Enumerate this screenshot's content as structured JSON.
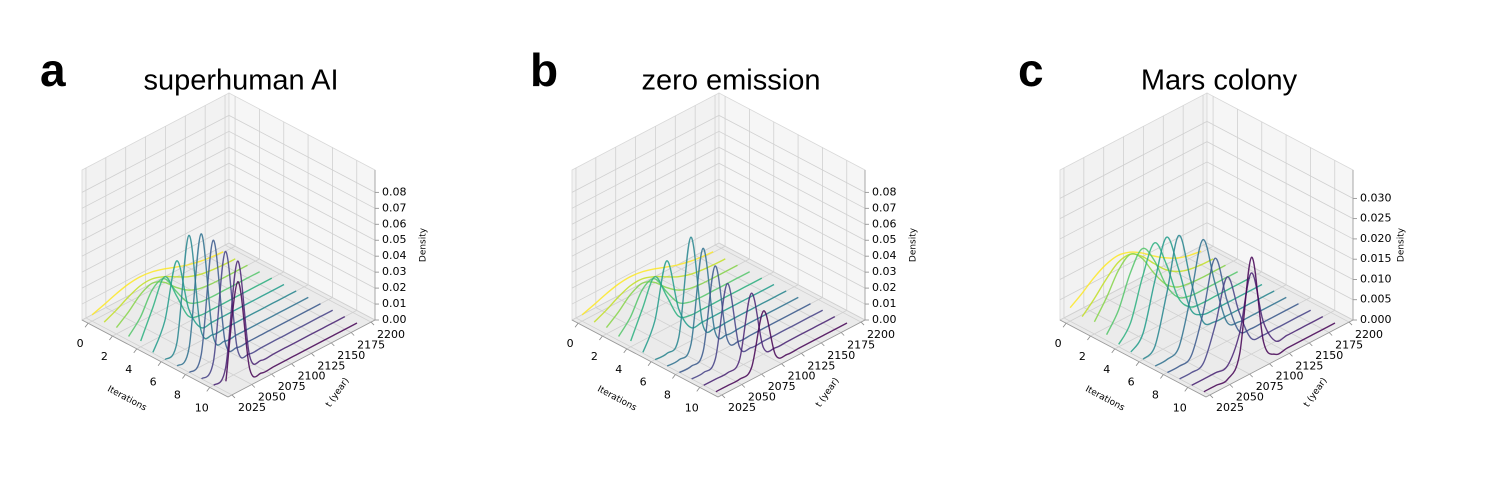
{
  "chart_data": [
    {
      "type": "line",
      "panel_label": "a",
      "title": "superhuman AI",
      "xlabel": "Iterations",
      "ylabel": "t (year)",
      "zlabel": "Density",
      "xlim": [
        -0.5,
        11.5
      ],
      "xticks": [
        0,
        2,
        4,
        6,
        8,
        10
      ],
      "ylim": [
        2020,
        2205
      ],
      "yticks": [
        2025,
        2050,
        2075,
        2100,
        2125,
        2150,
        2175,
        2200
      ],
      "zlim": [
        0,
        0.094
      ],
      "zticks": [
        {
          "value": 0,
          "label": "0.00"
        },
        {
          "value": 0.01,
          "label": "0.01"
        },
        {
          "value": 0.02,
          "label": "0.02"
        },
        {
          "value": 0.03,
          "label": "0.03"
        },
        {
          "value": 0.04,
          "label": "0.04"
        },
        {
          "value": 0.05,
          "label": "0.05"
        },
        {
          "value": 0.06,
          "label": "0.06"
        },
        {
          "value": 0.07,
          "label": "0.07"
        },
        {
          "value": 0.08,
          "label": "0.08"
        }
      ],
      "grid": true,
      "t": [
        2025,
        2040,
        2055,
        2070,
        2085,
        2100,
        2115,
        2130,
        2145,
        2160,
        2175,
        2190
      ],
      "series": [
        {
          "iteration": 0,
          "color": "#fde725",
          "values": [
            0.0039,
            0.0064,
            0.0091,
            0.0112,
            0.012,
            0.0112,
            0.0091,
            0.0064,
            0.0039,
            0.0021,
            0.001,
            0.0004
          ]
        },
        {
          "iteration": 1,
          "color": "#c2df23",
          "values": [
            0.0034,
            0.0069,
            0.0111,
            0.0143,
            0.0148,
            0.0123,
            0.0083,
            0.0044,
            0.0019,
            0.0007,
            0.0002,
            0
          ]
        },
        {
          "iteration": 2,
          "color": "#86d549",
          "values": [
            0.004,
            0.0097,
            0.0167,
            0.02,
            0.0167,
            0.0097,
            0.004,
            0.0011,
            0.0002,
            0,
            0,
            0
          ]
        },
        {
          "iteration": 3,
          "color": "#52c569",
          "values": [
            0.0024,
            0.0107,
            0.024,
            0.0269,
            0.0151,
            0.0042,
            0.0006,
            0,
            0,
            0,
            0,
            0
          ]
        },
        {
          "iteration": 4,
          "color": "#2ab07f",
          "values": [
            0.0036,
            0.0203,
            0.036,
            0.0203,
            0.0036,
            0.0002,
            0,
            0,
            0,
            0,
            0,
            0
          ]
        },
        {
          "iteration": 5,
          "color": "#1e9b8a",
          "values": [
            0.0005,
            0.0163,
            0.05,
            0.0163,
            0.0005,
            0,
            0,
            0,
            0,
            0,
            0,
            0
          ]
        },
        {
          "iteration": 6,
          "color": "#25858e",
          "values": [
            0,
            0.007,
            0.07,
            0.007,
            0,
            0,
            0,
            0,
            0,
            0,
            0,
            0
          ]
        },
        {
          "iteration": 7,
          "color": "#2d708e",
          "values": [
            0,
            0.0075,
            0.075,
            0.0075,
            0,
            0,
            0,
            0,
            0,
            0,
            0,
            0
          ]
        },
        {
          "iteration": 8,
          "color": "#38588c",
          "values": [
            0,
            0.0075,
            0.075,
            0.0075,
            0,
            0,
            0,
            0,
            0,
            0,
            0,
            0
          ]
        },
        {
          "iteration": 9,
          "color": "#433e85",
          "values": [
            0,
            0.0072,
            0.072,
            0.0072,
            0,
            0,
            0,
            0,
            0,
            0,
            0,
            0
          ]
        },
        {
          "iteration": 10,
          "color": "#482173",
          "values": [
            0,
            0.007,
            0.07,
            0.007,
            0,
            0,
            0,
            0,
            0,
            0,
            0,
            0
          ]
        },
        {
          "iteration": 11,
          "color": "#440154",
          "values": [
            0.0065,
            0.065,
            0.0065,
            0,
            0,
            0,
            0,
            0,
            0,
            0,
            0,
            0
          ]
        }
      ]
    },
    {
      "type": "line",
      "panel_label": "b",
      "title": "zero emission",
      "xlabel": "Iterations",
      "ylabel": "t (year)",
      "zlabel": "Density",
      "xlim": [
        -0.5,
        11.5
      ],
      "xticks": [
        0,
        2,
        4,
        6,
        8,
        10
      ],
      "ylim": [
        2020,
        2205
      ],
      "yticks": [
        2025,
        2050,
        2075,
        2100,
        2125,
        2150,
        2175,
        2200
      ],
      "zlim": [
        0,
        0.094
      ],
      "zticks": [
        {
          "value": 0,
          "label": "0.00"
        },
        {
          "value": 0.01,
          "label": "0.01"
        },
        {
          "value": 0.02,
          "label": "0.02"
        },
        {
          "value": 0.03,
          "label": "0.03"
        },
        {
          "value": 0.04,
          "label": "0.04"
        },
        {
          "value": 0.05,
          "label": "0.05"
        },
        {
          "value": 0.06,
          "label": "0.06"
        },
        {
          "value": 0.07,
          "label": "0.07"
        },
        {
          "value": 0.08,
          "label": "0.08"
        }
      ],
      "grid": true,
      "t": [
        2025,
        2040,
        2055,
        2070,
        2085,
        2100,
        2115,
        2130,
        2145,
        2160,
        2175,
        2190
      ],
      "series": [
        {
          "iteration": 0,
          "color": "#fde725",
          "values": [
            0.0039,
            0.0064,
            0.0091,
            0.0112,
            0.012,
            0.0112,
            0.0091,
            0.0064,
            0.0039,
            0.0021,
            0.001,
            0.0004
          ]
        },
        {
          "iteration": 1,
          "color": "#c2df23",
          "values": [
            0.0034,
            0.0069,
            0.0111,
            0.0143,
            0.0148,
            0.0123,
            0.0083,
            0.0044,
            0.0019,
            0.0007,
            0.0002,
            0
          ]
        },
        {
          "iteration": 2,
          "color": "#86d549",
          "values": [
            0.004,
            0.0097,
            0.0167,
            0.02,
            0.0167,
            0.0097,
            0.004,
            0.0011,
            0.0002,
            0,
            0,
            0
          ]
        },
        {
          "iteration": 3,
          "color": "#52c569",
          "values": [
            0.0024,
            0.0107,
            0.024,
            0.0269,
            0.0151,
            0.0042,
            0.0006,
            0,
            0,
            0,
            0,
            0
          ]
        },
        {
          "iteration": 4,
          "color": "#2ab07f",
          "values": [
            0.0036,
            0.0203,
            0.036,
            0.0203,
            0.0036,
            0.0002,
            0,
            0,
            0,
            0,
            0,
            0
          ]
        },
        {
          "iteration": 5,
          "color": "#1e9b8a",
          "values": [
            0.0005,
            0.0163,
            0.05,
            0.0163,
            0.0005,
            0,
            0,
            0,
            0,
            0,
            0,
            0
          ]
        },
        {
          "iteration": 6,
          "color": "#25858e",
          "values": [
            0,
            0,
            0.0065,
            0.065,
            0.0065,
            0,
            0,
            0,
            0,
            0,
            0,
            0
          ]
        },
        {
          "iteration": 7,
          "color": "#2d708e",
          "values": [
            0,
            0,
            0.0062,
            0.062,
            0.0062,
            0,
            0,
            0,
            0,
            0,
            0,
            0
          ]
        },
        {
          "iteration": 8,
          "color": "#38588c",
          "values": [
            0,
            0,
            0.0055,
            0.055,
            0.0055,
            0,
            0,
            0,
            0,
            0,
            0,
            0
          ]
        },
        {
          "iteration": 9,
          "color": "#433e85",
          "values": [
            0,
            0,
            0.0048,
            0.048,
            0.0048,
            0,
            0,
            0,
            0,
            0,
            0,
            0
          ]
        },
        {
          "iteration": 10,
          "color": "#482173",
          "values": [
            0,
            0,
            0,
            0.0042,
            0.042,
            0.0042,
            0,
            0,
            0,
            0,
            0,
            0
          ]
        },
        {
          "iteration": 11,
          "color": "#440154",
          "values": [
            0,
            0,
            0,
            0.0035,
            0.035,
            0.0035,
            0,
            0,
            0,
            0,
            0,
            0
          ]
        }
      ]
    },
    {
      "type": "line",
      "panel_label": "c",
      "title": "Mars colony",
      "xlabel": "Iterations",
      "ylabel": "t (year)",
      "zlabel": "Density",
      "xlim": [
        -0.5,
        11.5
      ],
      "xticks": [
        0,
        2,
        4,
        6,
        8,
        10
      ],
      "ylim": [
        2020,
        2205
      ],
      "yticks": [
        2025,
        2050,
        2075,
        2100,
        2125,
        2150,
        2175,
        2200
      ],
      "zlim": [
        0,
        0.037
      ],
      "zticks": [
        {
          "value": 0,
          "label": "0.000"
        },
        {
          "value": 0.005,
          "label": "0.005"
        },
        {
          "value": 0.01,
          "label": "0.010"
        },
        {
          "value": 0.015,
          "label": "0.015"
        },
        {
          "value": 0.02,
          "label": "0.020"
        },
        {
          "value": 0.025,
          "label": "0.025"
        },
        {
          "value": 0.03,
          "label": "0.030"
        }
      ],
      "grid": true,
      "t": [
        2025,
        2040,
        2055,
        2070,
        2085,
        2100,
        2115,
        2130,
        2145,
        2160,
        2175,
        2190
      ],
      "series": [
        {
          "iteration": 0,
          "color": "#fde725",
          "values": [
            0.0033,
            0.0053,
            0.0076,
            0.0093,
            0.01,
            0.0093,
            0.0076,
            0.0053,
            0.0033,
            0.0017,
            0.0008,
            0.0003
          ]
        },
        {
          "iteration": 1,
          "color": "#c2df23",
          "values": [
            0.0027,
            0.0055,
            0.0088,
            0.0114,
            0.0119,
            0.0099,
            0.0066,
            0.0035,
            0.0015,
            0.0005,
            0.0001,
            0
          ]
        },
        {
          "iteration": 2,
          "color": "#86d549",
          "values": [
            0.003,
            0.0073,
            0.0125,
            0.015,
            0.0125,
            0.0073,
            0.003,
            0.0008,
            0.0002,
            0,
            0,
            0
          ]
        },
        {
          "iteration": 3,
          "color": "#52c569",
          "values": [
            0.0014,
            0.0059,
            0.0136,
            0.018,
            0.0136,
            0.0059,
            0.0014,
            0.0002,
            0,
            0,
            0,
            0
          ]
        },
        {
          "iteration": 4,
          "color": "#2ab07f",
          "values": [
            0.0006,
            0.0044,
            0.0142,
            0.021,
            0.0142,
            0.0044,
            0.0006,
            0,
            0,
            0,
            0,
            0
          ]
        },
        {
          "iteration": 5,
          "color": "#1e9b8a",
          "values": [
            0.0003,
            0.0032,
            0.0146,
            0.024,
            0.0146,
            0.0032,
            0.0003,
            0,
            0,
            0,
            0,
            0
          ]
        },
        {
          "iteration": 6,
          "color": "#25858e",
          "values": [
            0.0001,
            0.0018,
            0.0134,
            0.026,
            0.0134,
            0.0018,
            0.0001,
            0,
            0,
            0,
            0,
            0
          ]
        },
        {
          "iteration": 7,
          "color": "#2d708e",
          "values": [
            0,
            0.0001,
            0.0017,
            0.0129,
            0.025,
            0.0129,
            0.0017,
            0.0001,
            0,
            0,
            0,
            0
          ]
        },
        {
          "iteration": 8,
          "color": "#38588c",
          "values": [
            0,
            0,
            0.001,
            0.0101,
            0.022,
            0.0101,
            0.001,
            0,
            0,
            0,
            0,
            0
          ]
        },
        {
          "iteration": 9,
          "color": "#433e85",
          "values": [
            0,
            0,
            0.0008,
            0.0087,
            0.019,
            0.0087,
            0.0008,
            0,
            0,
            0,
            0,
            0
          ]
        },
        {
          "iteration": 10,
          "color": "#482173",
          "values": [
            0,
            0,
            0,
            0.0002,
            0.0065,
            0.02,
            0.0065,
            0.0002,
            0,
            0,
            0,
            0
          ]
        },
        {
          "iteration": 11,
          "color": "#440154",
          "values": [
            0,
            0,
            0,
            0.0046,
            0.027,
            0.0046,
            0,
            0,
            0,
            0,
            0,
            0
          ]
        }
      ]
    }
  ]
}
